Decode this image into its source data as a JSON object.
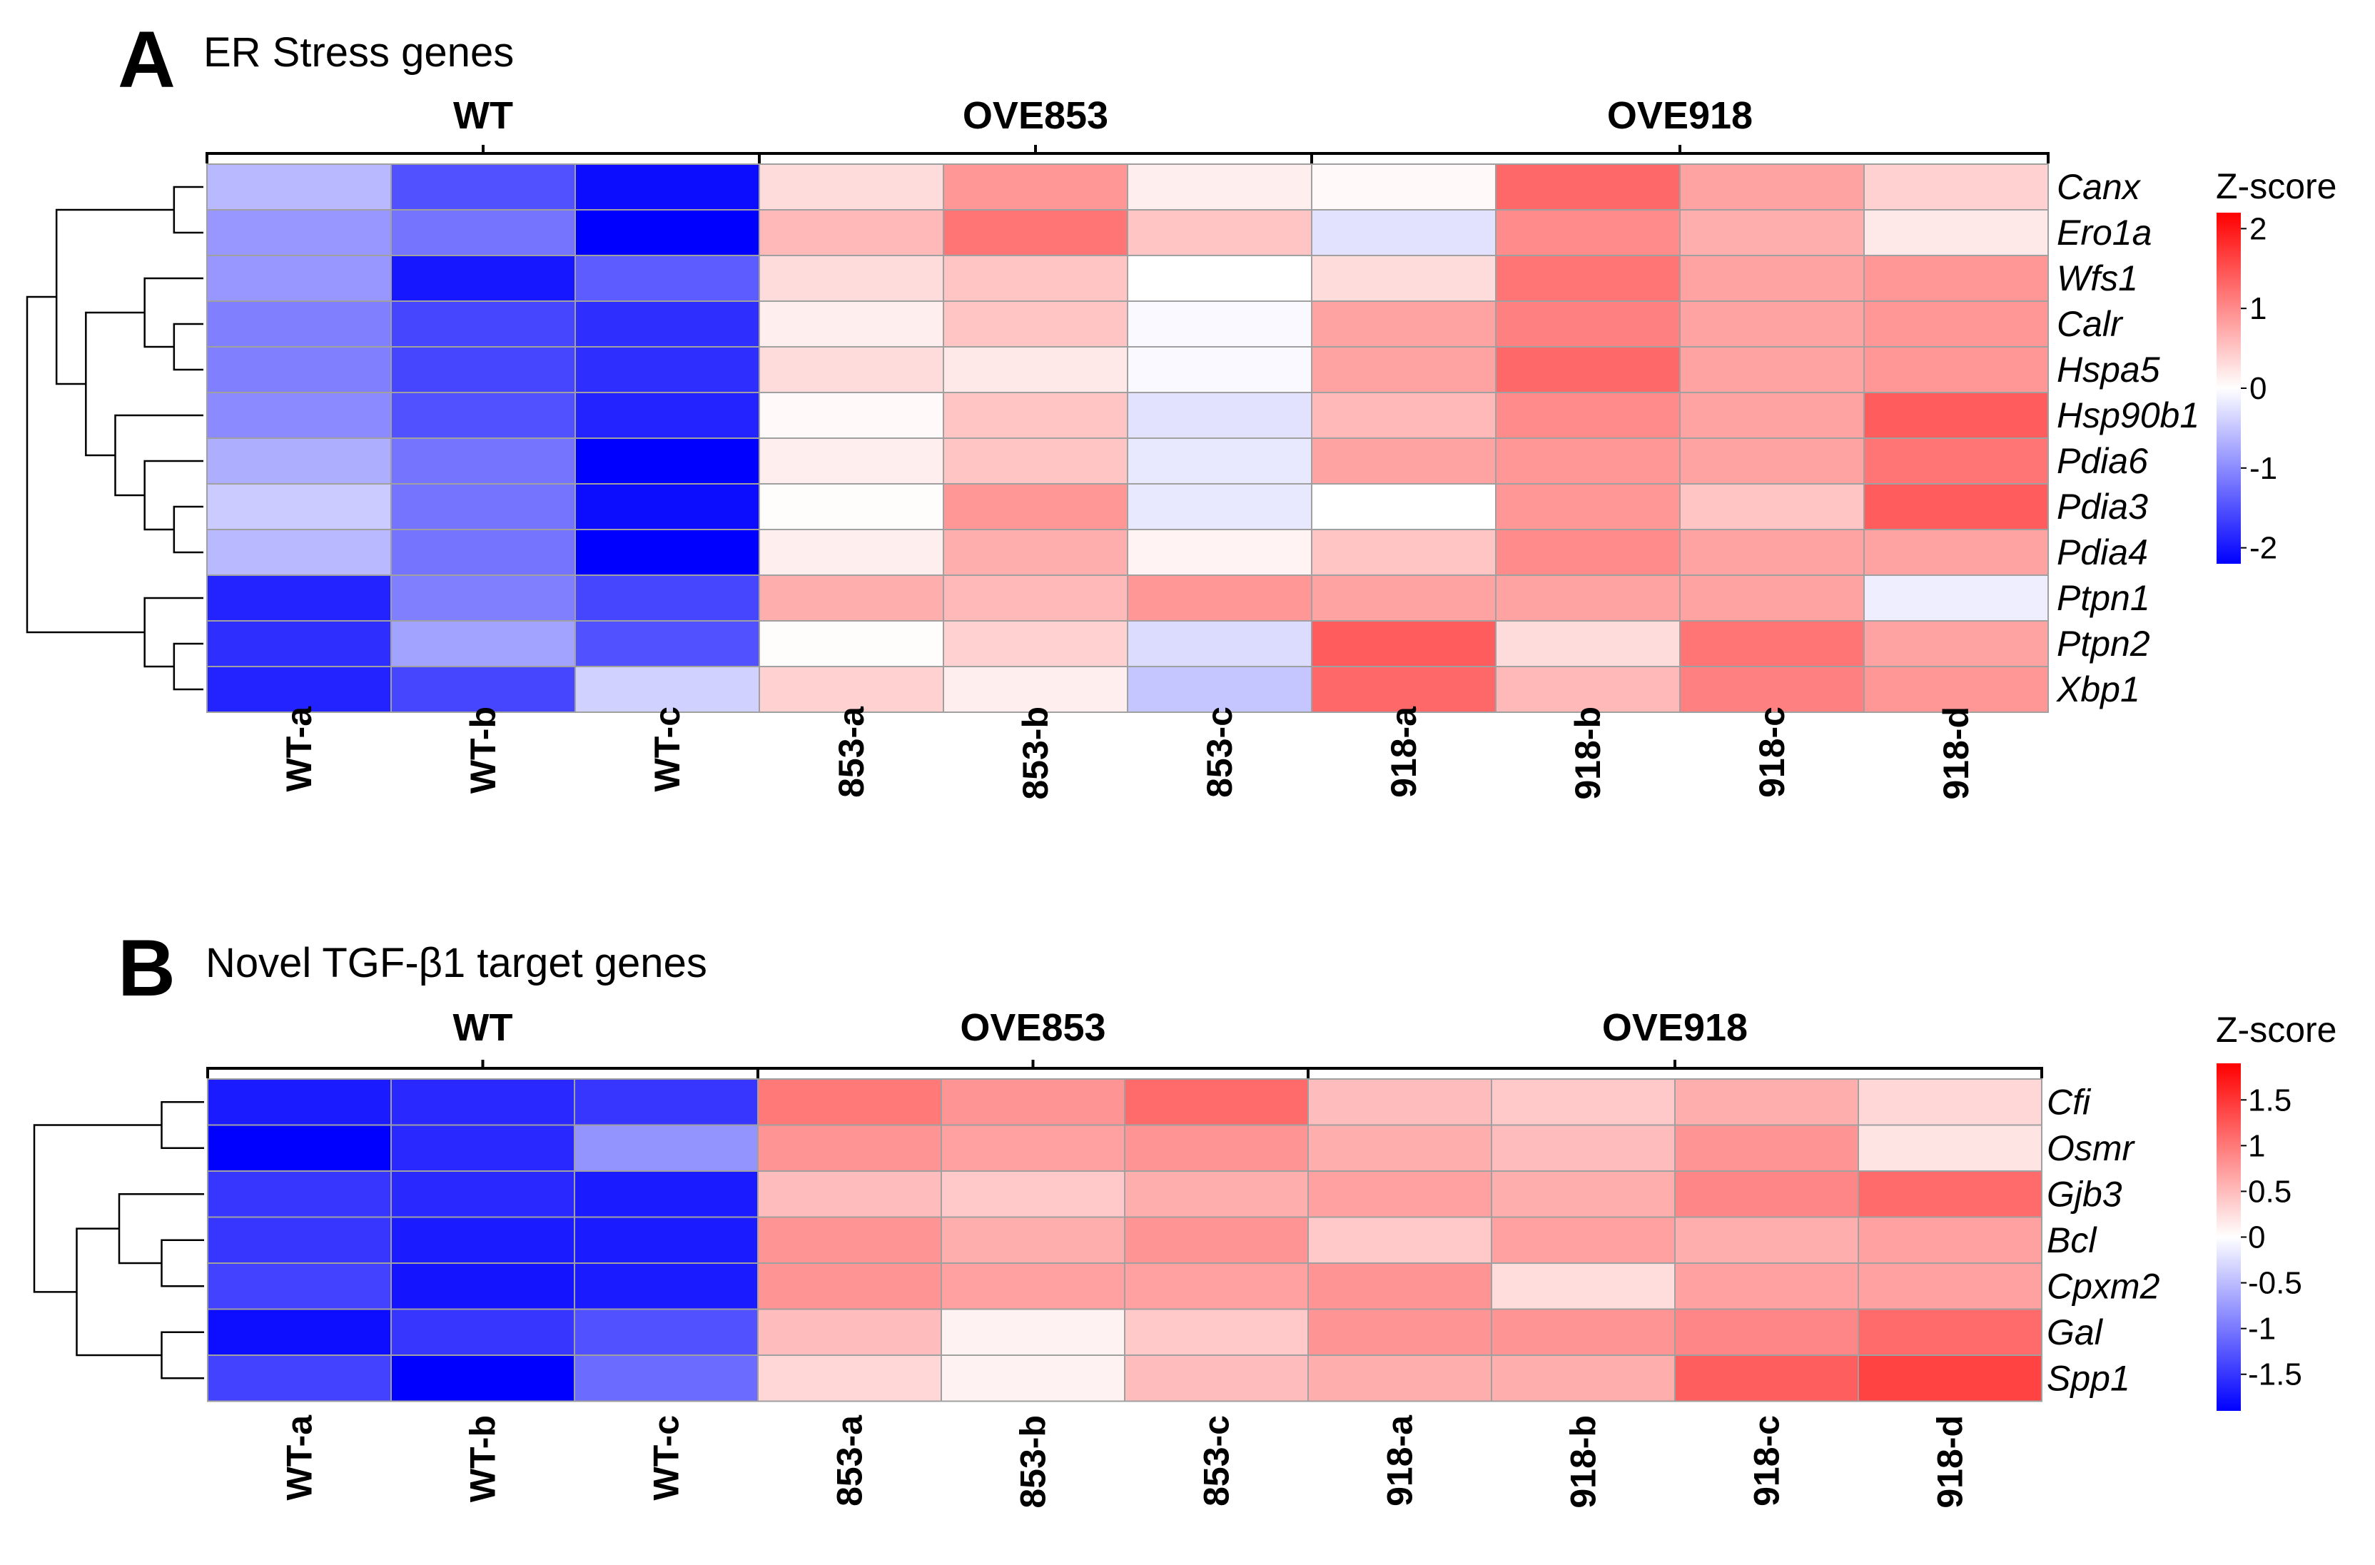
{
  "chart_data": [
    {
      "type": "heatmap",
      "panel_label": "A",
      "title": "ER Stress genes",
      "groups": [
        {
          "label": "WT",
          "columns": [
            "WT-a",
            "WT-b",
            "WT-c"
          ]
        },
        {
          "label": "OVE853",
          "columns": [
            "853-a",
            "853-b",
            "853-c"
          ]
        },
        {
          "label": "OVE918",
          "columns": [
            "918-a",
            "918-b",
            "918-c",
            "918-d"
          ]
        }
      ],
      "columns": [
        "WT-a",
        "WT-b",
        "WT-c",
        "853-a",
        "853-b",
        "853-c",
        "918-a",
        "918-b",
        "918-c",
        "918-d"
      ],
      "rows": [
        "Canx",
        "Ero1a",
        "Wfs1",
        "Calr",
        "Hspa5",
        "Hsp90b1",
        "Pdia6",
        "Pdia3",
        "Pdia4",
        "Ptpn1",
        "Ptpn2",
        "Xbp1"
      ],
      "values": [
        [
          -0.6,
          -1.5,
          -2.1,
          0.3,
          0.9,
          0.15,
          0.05,
          1.3,
          0.8,
          0.4
        ],
        [
          -0.9,
          -1.2,
          -2.2,
          0.6,
          1.2,
          0.5,
          -0.25,
          1.0,
          0.7,
          0.2
        ],
        [
          -0.9,
          -2.0,
          -1.4,
          0.3,
          0.5,
          0.0,
          0.3,
          1.2,
          0.8,
          0.9
        ],
        [
          -1.1,
          -1.6,
          -1.8,
          0.15,
          0.5,
          -0.05,
          0.8,
          1.1,
          0.8,
          0.9
        ],
        [
          -1.1,
          -1.6,
          -1.8,
          0.3,
          0.2,
          -0.05,
          0.8,
          1.3,
          0.8,
          0.9
        ],
        [
          -1.0,
          -1.5,
          -1.9,
          0.05,
          0.5,
          -0.25,
          0.6,
          1.0,
          0.8,
          1.4
        ],
        [
          -0.7,
          -1.2,
          -2.2,
          0.15,
          0.5,
          -0.2,
          0.8,
          0.9,
          0.8,
          1.2
        ],
        [
          -0.45,
          -1.2,
          -2.1,
          0.03,
          0.9,
          -0.2,
          0.0,
          0.9,
          0.5,
          1.4
        ],
        [
          -0.6,
          -1.2,
          -2.3,
          0.15,
          0.7,
          0.1,
          0.5,
          1.0,
          0.8,
          0.8
        ],
        [
          -1.9,
          -1.1,
          -1.6,
          0.7,
          0.6,
          0.9,
          0.8,
          0.8,
          0.8,
          -0.15
        ],
        [
          -1.8,
          -0.8,
          -1.5,
          0.03,
          0.4,
          -0.3,
          1.4,
          0.3,
          1.2,
          0.8
        ],
        [
          -1.9,
          -1.6,
          -0.4,
          0.4,
          0.15,
          -0.5,
          1.3,
          0.6,
          1.1,
          0.9
        ]
      ],
      "colorbar": {
        "title": "Z-score",
        "min": -2.2,
        "max": 2.2,
        "ticks": [
          "2",
          "1",
          "0",
          "-1",
          "-2"
        ],
        "low_color": "#0000ff",
        "mid_color": "#ffffff",
        "high_color": "#ff0000"
      }
    },
    {
      "type": "heatmap",
      "panel_label": "B",
      "title": "Novel TGF-β1 target genes",
      "groups": [
        {
          "label": "WT",
          "columns": [
            "WT-a",
            "WT-b",
            "WT-c"
          ]
        },
        {
          "label": "OVE853",
          "columns": [
            "853-a",
            "853-b",
            "853-c"
          ]
        },
        {
          "label": "OVE918",
          "columns": [
            "918-a",
            "918-b",
            "918-c",
            "918-d"
          ]
        }
      ],
      "columns": [
        "WT-a",
        "WT-b",
        "WT-c",
        "853-a",
        "853-b",
        "853-c",
        "918-a",
        "918-b",
        "918-c",
        "918-d"
      ],
      "rows": [
        "Cfi",
        "Osmr",
        "Gjb3",
        "Bcl",
        "Cpxm2",
        "Gal",
        "Spp1"
      ],
      "values": [
        [
          -1.7,
          -1.6,
          -1.5,
          1.0,
          0.8,
          1.1,
          0.5,
          0.4,
          0.6,
          0.3
        ],
        [
          -1.95,
          -1.6,
          -0.8,
          0.8,
          0.7,
          0.8,
          0.6,
          0.5,
          0.8,
          0.2
        ],
        [
          -1.5,
          -1.6,
          -1.7,
          0.5,
          0.4,
          0.6,
          0.7,
          0.6,
          0.9,
          1.1
        ],
        [
          -1.5,
          -1.7,
          -1.7,
          0.8,
          0.6,
          0.8,
          0.4,
          0.7,
          0.6,
          0.7
        ],
        [
          -1.4,
          -1.75,
          -1.7,
          0.8,
          0.7,
          0.7,
          0.8,
          0.25,
          0.7,
          0.7
        ],
        [
          -1.8,
          -1.5,
          -1.3,
          0.5,
          0.1,
          0.4,
          0.8,
          0.8,
          0.9,
          1.1
        ],
        [
          -1.4,
          -1.95,
          -1.1,
          0.3,
          0.1,
          0.5,
          0.6,
          0.6,
          1.2,
          1.4
        ]
      ],
      "colorbar": {
        "title": "Z-score",
        "min": -1.9,
        "max": 1.9,
        "ticks": [
          "1.5",
          "1",
          "0.5",
          "0",
          "-0.5",
          "-1",
          "-1.5"
        ],
        "low_color": "#0000ff",
        "mid_color": "#ffffff",
        "high_color": "#ff0000"
      }
    }
  ]
}
